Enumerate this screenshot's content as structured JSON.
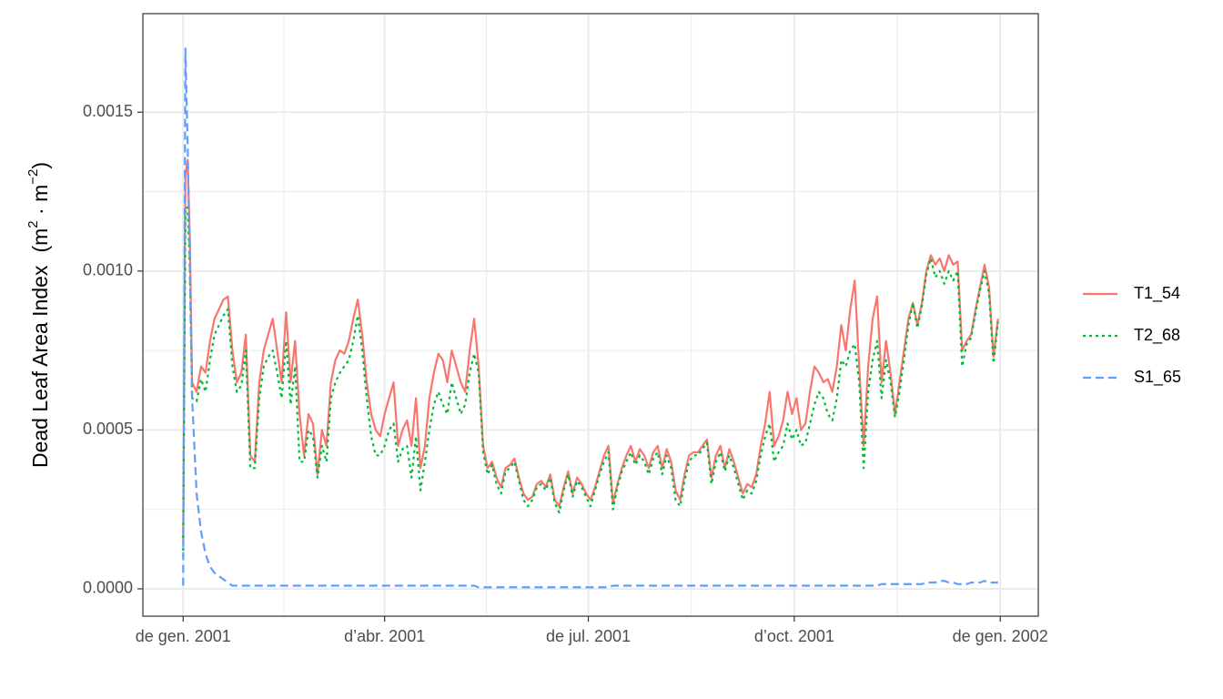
{
  "chart_data": {
    "type": "line",
    "y_label": "Dead Leaf Area Index",
    "y_unit": [
      "(",
      "m",
      "2",
      " · ",
      "m",
      "−2",
      ")"
    ],
    "x": [
      "2001-01-01",
      "2001-01-02",
      "2001-01-03",
      "2001-01-04",
      "2001-01-05",
      "2001-01-07",
      "2001-01-09",
      "2001-01-11",
      "2001-01-13",
      "2001-01-15",
      "2001-01-17",
      "2001-01-19",
      "2001-01-21",
      "2001-01-23",
      "2001-01-25",
      "2001-01-27",
      "2001-01-29",
      "2001-01-31",
      "2001-02-02",
      "2001-02-04",
      "2001-02-06",
      "2001-02-08",
      "2001-02-10",
      "2001-02-12",
      "2001-02-14",
      "2001-02-16",
      "2001-02-18",
      "2001-02-20",
      "2001-02-22",
      "2001-02-24",
      "2001-02-26",
      "2001-02-28",
      "2001-03-02",
      "2001-03-04",
      "2001-03-06",
      "2001-03-08",
      "2001-03-10",
      "2001-03-12",
      "2001-03-14",
      "2001-03-16",
      "2001-03-18",
      "2001-03-20",
      "2001-03-22",
      "2001-03-24",
      "2001-03-26",
      "2001-03-28",
      "2001-03-30",
      "2001-04-01",
      "2001-04-03",
      "2001-04-05",
      "2001-04-07",
      "2001-04-09",
      "2001-04-11",
      "2001-04-13",
      "2001-04-15",
      "2001-04-17",
      "2001-04-19",
      "2001-04-21",
      "2001-04-23",
      "2001-04-25",
      "2001-04-27",
      "2001-04-29",
      "2001-05-01",
      "2001-05-03",
      "2001-05-05",
      "2001-05-07",
      "2001-05-09",
      "2001-05-11",
      "2001-05-13",
      "2001-05-15",
      "2001-05-17",
      "2001-05-19",
      "2001-05-21",
      "2001-05-23",
      "2001-05-25",
      "2001-05-27",
      "2001-05-29",
      "2001-05-31",
      "2001-06-02",
      "2001-06-04",
      "2001-06-06",
      "2001-06-08",
      "2001-06-10",
      "2001-06-12",
      "2001-06-14",
      "2001-06-16",
      "2001-06-18",
      "2001-06-20",
      "2001-06-22",
      "2001-06-24",
      "2001-06-26",
      "2001-06-28",
      "2001-06-30",
      "2001-07-02",
      "2001-07-04",
      "2001-07-06",
      "2001-07-08",
      "2001-07-10",
      "2001-07-12",
      "2001-07-14",
      "2001-07-16",
      "2001-07-18",
      "2001-07-20",
      "2001-07-22",
      "2001-07-24",
      "2001-07-26",
      "2001-07-28",
      "2001-07-30",
      "2001-08-01",
      "2001-08-03",
      "2001-08-05",
      "2001-08-07",
      "2001-08-09",
      "2001-08-11",
      "2001-08-13",
      "2001-08-15",
      "2001-08-17",
      "2001-08-19",
      "2001-08-21",
      "2001-08-23",
      "2001-08-25",
      "2001-08-27",
      "2001-08-29",
      "2001-08-31",
      "2001-09-02",
      "2001-09-04",
      "2001-09-06",
      "2001-09-08",
      "2001-09-10",
      "2001-09-12",
      "2001-09-14",
      "2001-09-16",
      "2001-09-18",
      "2001-09-20",
      "2001-09-22",
      "2001-09-24",
      "2001-09-26",
      "2001-09-28",
      "2001-09-30",
      "2001-10-02",
      "2001-10-04",
      "2001-10-06",
      "2001-10-08",
      "2001-10-10",
      "2001-10-12",
      "2001-10-14",
      "2001-10-16",
      "2001-10-18",
      "2001-10-20",
      "2001-10-22",
      "2001-10-24",
      "2001-10-26",
      "2001-10-28",
      "2001-10-30",
      "2001-11-01",
      "2001-11-03",
      "2001-11-05",
      "2001-11-07",
      "2001-11-09",
      "2001-11-11",
      "2001-11-13",
      "2001-11-15",
      "2001-11-17",
      "2001-11-19",
      "2001-11-21",
      "2001-11-23",
      "2001-11-25",
      "2001-11-27",
      "2001-11-29",
      "2001-12-01",
      "2001-12-03",
      "2001-12-05",
      "2001-12-07",
      "2001-12-09",
      "2001-12-11",
      "2001-12-13",
      "2001-12-15",
      "2001-12-17",
      "2001-12-19",
      "2001-12-21",
      "2001-12-23",
      "2001-12-25",
      "2001-12-27",
      "2001-12-29",
      "2001-12-31"
    ],
    "series": [
      {
        "name": "T1_54",
        "color": "#F8766D",
        "dash": "solid",
        "values": [
          0.00015,
          0.0013,
          0.00135,
          0.0011,
          0.00065,
          0.00062,
          0.0007,
          0.00068,
          0.00078,
          0.00085,
          0.00088,
          0.00091,
          0.00092,
          0.00075,
          0.00065,
          0.00068,
          0.0008,
          0.00042,
          0.0004,
          0.00065,
          0.00075,
          0.0008,
          0.00085,
          0.00075,
          0.00065,
          0.00087,
          0.00065,
          0.00078,
          0.00055,
          0.00042,
          0.00055,
          0.00052,
          0.00036,
          0.0005,
          0.00045,
          0.00065,
          0.00072,
          0.00075,
          0.00074,
          0.00078,
          0.00085,
          0.00091,
          0.0008,
          0.00065,
          0.00055,
          0.0005,
          0.00048,
          0.00055,
          0.0006,
          0.00065,
          0.00045,
          0.0005,
          0.00053,
          0.00045,
          0.0006,
          0.00038,
          0.00045,
          0.0006,
          0.00068,
          0.00074,
          0.00072,
          0.00065,
          0.00075,
          0.0007,
          0.00065,
          0.00062,
          0.00075,
          0.00085,
          0.0007,
          0.00045,
          0.00038,
          0.0004,
          0.00035,
          0.00032,
          0.00038,
          0.00039,
          0.00041,
          0.00035,
          0.0003,
          0.00028,
          0.00029,
          0.00033,
          0.00034,
          0.00032,
          0.00036,
          0.00028,
          0.00026,
          0.00032,
          0.00037,
          0.0003,
          0.00035,
          0.00033,
          0.0003,
          0.00028,
          0.00032,
          0.00037,
          0.00042,
          0.00045,
          0.00027,
          0.00033,
          0.00038,
          0.00042,
          0.00045,
          0.0004,
          0.00044,
          0.00042,
          0.00038,
          0.00043,
          0.00045,
          0.00038,
          0.00044,
          0.0004,
          0.00031,
          0.00028,
          0.00036,
          0.00042,
          0.00043,
          0.00043,
          0.00045,
          0.00047,
          0.00035,
          0.00042,
          0.00045,
          0.00038,
          0.00044,
          0.0004,
          0.00035,
          0.0003,
          0.00033,
          0.00032,
          0.00036,
          0.00045,
          0.00052,
          0.00062,
          0.00045,
          0.00048,
          0.00053,
          0.00062,
          0.00055,
          0.0006,
          0.0005,
          0.00052,
          0.00062,
          0.0007,
          0.00068,
          0.00065,
          0.00066,
          0.00062,
          0.0007,
          0.00083,
          0.00075,
          0.00088,
          0.00097,
          0.0007,
          0.00045,
          0.0007,
          0.00085,
          0.00092,
          0.00065,
          0.00078,
          0.00068,
          0.00055,
          0.00065,
          0.00075,
          0.00085,
          0.0009,
          0.00083,
          0.0009,
          0.001,
          0.00105,
          0.00102,
          0.00104,
          0.001,
          0.00105,
          0.00102,
          0.00103,
          0.00075,
          0.00078,
          0.0008,
          0.00088,
          0.00095,
          0.00102,
          0.00095,
          0.00073,
          0.00085
        ]
      },
      {
        "name": "T2_68",
        "color": "#00BA38",
        "dash": "dotted",
        "values": [
          0.0001,
          0.0012,
          0.0012,
          0.001,
          0.0006,
          0.00059,
          0.00066,
          0.00062,
          0.00072,
          0.0008,
          0.00083,
          0.00086,
          0.00088,
          0.0007,
          0.00062,
          0.00064,
          0.00075,
          0.00038,
          0.00038,
          0.0006,
          0.0007,
          0.00073,
          0.00075,
          0.00068,
          0.0006,
          0.00078,
          0.00058,
          0.0007,
          0.0004,
          0.0004,
          0.0005,
          0.00048,
          0.00035,
          0.00045,
          0.0004,
          0.0006,
          0.00065,
          0.00068,
          0.0007,
          0.00072,
          0.00078,
          0.00086,
          0.00075,
          0.0006,
          0.00048,
          0.00042,
          0.00042,
          0.00045,
          0.0005,
          0.00052,
          0.0004,
          0.00044,
          0.00045,
          0.00035,
          0.00048,
          0.00031,
          0.0004,
          0.0005,
          0.00058,
          0.00062,
          0.00058,
          0.00055,
          0.00065,
          0.0006,
          0.00055,
          0.00058,
          0.00068,
          0.00074,
          0.00068,
          0.00043,
          0.00036,
          0.00039,
          0.00033,
          0.0003,
          0.00037,
          0.00038,
          0.0004,
          0.00034,
          0.00028,
          0.00026,
          0.00028,
          0.00032,
          0.00033,
          0.00031,
          0.00035,
          0.00027,
          0.00024,
          0.00031,
          0.00036,
          0.00029,
          0.00034,
          0.00032,
          0.00029,
          0.00026,
          0.00031,
          0.00036,
          0.0004,
          0.00043,
          0.00025,
          0.00032,
          0.00037,
          0.0004,
          0.00043,
          0.00039,
          0.00042,
          0.0004,
          0.00036,
          0.00041,
          0.00043,
          0.00036,
          0.00042,
          0.00038,
          0.00028,
          0.00026,
          0.00034,
          0.0004,
          0.00042,
          0.00042,
          0.00044,
          0.00046,
          0.00033,
          0.0004,
          0.00043,
          0.00037,
          0.00042,
          0.00038,
          0.00033,
          0.00028,
          0.00031,
          0.0003,
          0.00034,
          0.00042,
          0.00048,
          0.00052,
          0.0004,
          0.00043,
          0.00045,
          0.00052,
          0.00047,
          0.0005,
          0.00045,
          0.00046,
          0.00052,
          0.00058,
          0.00062,
          0.0006,
          0.00055,
          0.00053,
          0.0006,
          0.00072,
          0.0007,
          0.00075,
          0.00077,
          0.00065,
          0.00038,
          0.00062,
          0.00072,
          0.00078,
          0.0006,
          0.00072,
          0.00065,
          0.00054,
          0.00062,
          0.00072,
          0.00083,
          0.0009,
          0.00082,
          0.00089,
          0.00099,
          0.00104,
          0.00098,
          0.001,
          0.00096,
          0.001,
          0.00097,
          0.001,
          0.0007,
          0.00077,
          0.00079,
          0.00087,
          0.00094,
          0.001,
          0.00093,
          0.00071,
          0.00084
        ]
      },
      {
        "name": "S1_65",
        "color": "#619CFF",
        "dash": "dashed",
        "values": [
          1e-05,
          0.0017,
          0.0014,
          0.001,
          0.0006,
          0.0003,
          0.00018,
          0.00011,
          7e-05,
          5e-05,
          4e-05,
          3e-05,
          2e-05,
          1e-05,
          1e-05,
          1e-05,
          1e-05,
          1e-05,
          1e-05,
          1e-05,
          1e-05,
          1e-05,
          1e-05,
          1e-05,
          1e-05,
          1e-05,
          1e-05,
          1e-05,
          1e-05,
          1e-05,
          1e-05,
          1e-05,
          1e-05,
          1e-05,
          1e-05,
          1e-05,
          1e-05,
          1e-05,
          1e-05,
          1e-05,
          1e-05,
          1e-05,
          1e-05,
          1e-05,
          1e-05,
          1e-05,
          1e-05,
          1e-05,
          1e-05,
          1e-05,
          1e-05,
          1e-05,
          1e-05,
          1e-05,
          1e-05,
          1e-05,
          1e-05,
          1e-05,
          1e-05,
          1e-05,
          1e-05,
          1e-05,
          1e-05,
          1e-05,
          1e-05,
          1e-05,
          1e-05,
          1e-05,
          5e-06,
          5e-06,
          5e-06,
          5e-06,
          5e-06,
          5e-06,
          5e-06,
          5e-06,
          5e-06,
          5e-06,
          5e-06,
          5e-06,
          5e-06,
          5e-06,
          5e-06,
          5e-06,
          5e-06,
          5e-06,
          5e-06,
          5e-06,
          5e-06,
          5e-06,
          5e-06,
          5e-06,
          5e-06,
          5e-06,
          5e-06,
          5e-06,
          5e-06,
          5e-06,
          1e-05,
          1e-05,
          1e-05,
          1e-05,
          1e-05,
          1e-05,
          1e-05,
          1e-05,
          1e-05,
          1e-05,
          1e-05,
          1e-05,
          1e-05,
          1e-05,
          1e-05,
          1e-05,
          1e-05,
          1e-05,
          1e-05,
          1e-05,
          1e-05,
          1e-05,
          1e-05,
          1e-05,
          1e-05,
          1e-05,
          1e-05,
          1e-05,
          1e-05,
          1e-05,
          1e-05,
          1e-05,
          1e-05,
          1e-05,
          1e-05,
          1e-05,
          1e-05,
          1e-05,
          1e-05,
          1e-05,
          1e-05,
          1e-05,
          1e-05,
          1e-05,
          1e-05,
          1e-05,
          1e-05,
          1e-05,
          1e-05,
          1e-05,
          1e-05,
          1e-05,
          1e-05,
          1e-05,
          1e-05,
          1e-05,
          1e-05,
          1e-05,
          1e-05,
          1e-05,
          1.5e-05,
          1.5e-05,
          1.5e-05,
          1.5e-05,
          1.5e-05,
          1.5e-05,
          1.5e-05,
          1.5e-05,
          1.5e-05,
          1.5e-05,
          2e-05,
          2e-05,
          2e-05,
          2.5e-05,
          2.5e-05,
          2e-05,
          2e-05,
          1.5e-05,
          1.5e-05,
          1.5e-05,
          2e-05,
          2e-05,
          2e-05,
          2.5e-05,
          2e-05,
          2e-05,
          2e-05
        ]
      }
    ],
    "xlim": [
      "2000-12-14",
      "2002-01-18"
    ],
    "xticks": [
      {
        "value": "2001-01-01",
        "label": "de gen. 2001"
      },
      {
        "value": "2001-04-01",
        "label": "d’abr. 2001"
      },
      {
        "value": "2001-07-01",
        "label": "de jul. 2001"
      },
      {
        "value": "2001-10-01",
        "label": "d’oct. 2001"
      },
      {
        "value": "2002-01-01",
        "label": "de gen. 2002"
      }
    ],
    "ylim": [
      -8.6e-05,
      0.00181
    ],
    "yticks": [
      {
        "value": 0,
        "label": "0.0000"
      },
      0.0005,
      {
        "value": 0.001,
        "label": "0.0010"
      },
      0.0015
    ],
    "grid": true,
    "legend": "right"
  }
}
